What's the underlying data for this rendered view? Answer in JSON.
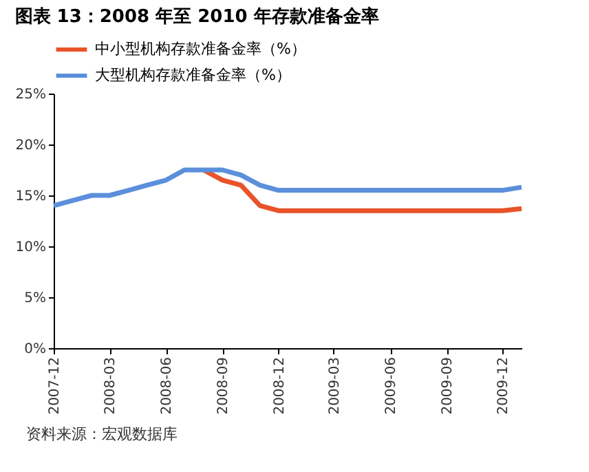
{
  "chart_data": {
    "type": "line",
    "title": "图表 13：2008 年至 2010 年存款准备金率",
    "x": [
      "2007-12",
      "2008-01",
      "2008-02",
      "2008-03",
      "2008-04",
      "2008-05",
      "2008-06",
      "2008-07",
      "2008-08",
      "2008-09",
      "2008-10",
      "2008-11",
      "2008-12",
      "2009-01",
      "2009-02",
      "2009-03",
      "2009-04",
      "2009-05",
      "2009-06",
      "2009-07",
      "2009-08",
      "2009-09",
      "2009-10",
      "2009-11",
      "2009-12",
      "2010-01"
    ],
    "series": [
      {
        "name": "中小型机构存款准备金率（%）",
        "color": "#e8532a",
        "values": [
          null,
          null,
          null,
          null,
          null,
          null,
          null,
          null,
          17.5,
          16.5,
          16.0,
          14.0,
          13.5,
          13.5,
          13.5,
          13.5,
          13.5,
          13.5,
          13.5,
          13.5,
          13.5,
          13.5,
          13.5,
          13.5,
          13.5,
          13.7
        ]
      },
      {
        "name": "大型机构存款准备金率（%）",
        "color": "#5b8fdb",
        "values": [
          14.0,
          14.5,
          15.0,
          15.0,
          15.5,
          16.0,
          16.5,
          17.5,
          17.5,
          17.5,
          17.0,
          16.0,
          15.5,
          15.5,
          15.5,
          15.5,
          15.5,
          15.5,
          15.5,
          15.5,
          15.5,
          15.5,
          15.5,
          15.5,
          15.5,
          15.8
        ]
      }
    ],
    "xlim": [
      "2007-12",
      "2010-01"
    ],
    "xticks": [
      "2007-12",
      "2008-03",
      "2008-06",
      "2008-09",
      "2008-12",
      "2009-03",
      "2009-06",
      "2009-09",
      "2009-12"
    ],
    "ylim": [
      0,
      25
    ],
    "yticks": [
      {
        "value": 0,
        "label": "0%"
      },
      {
        "value": 5,
        "label": "5%"
      },
      {
        "value": 10,
        "label": "10%"
      },
      {
        "value": 15,
        "label": "15%"
      },
      {
        "value": 20,
        "label": "20%"
      },
      {
        "value": 25,
        "label": "25%"
      }
    ],
    "grid": false,
    "legend": "top",
    "marker": "none",
    "line_style": "solid",
    "annotations": [
      "资料来源：宏观数据库"
    ]
  }
}
